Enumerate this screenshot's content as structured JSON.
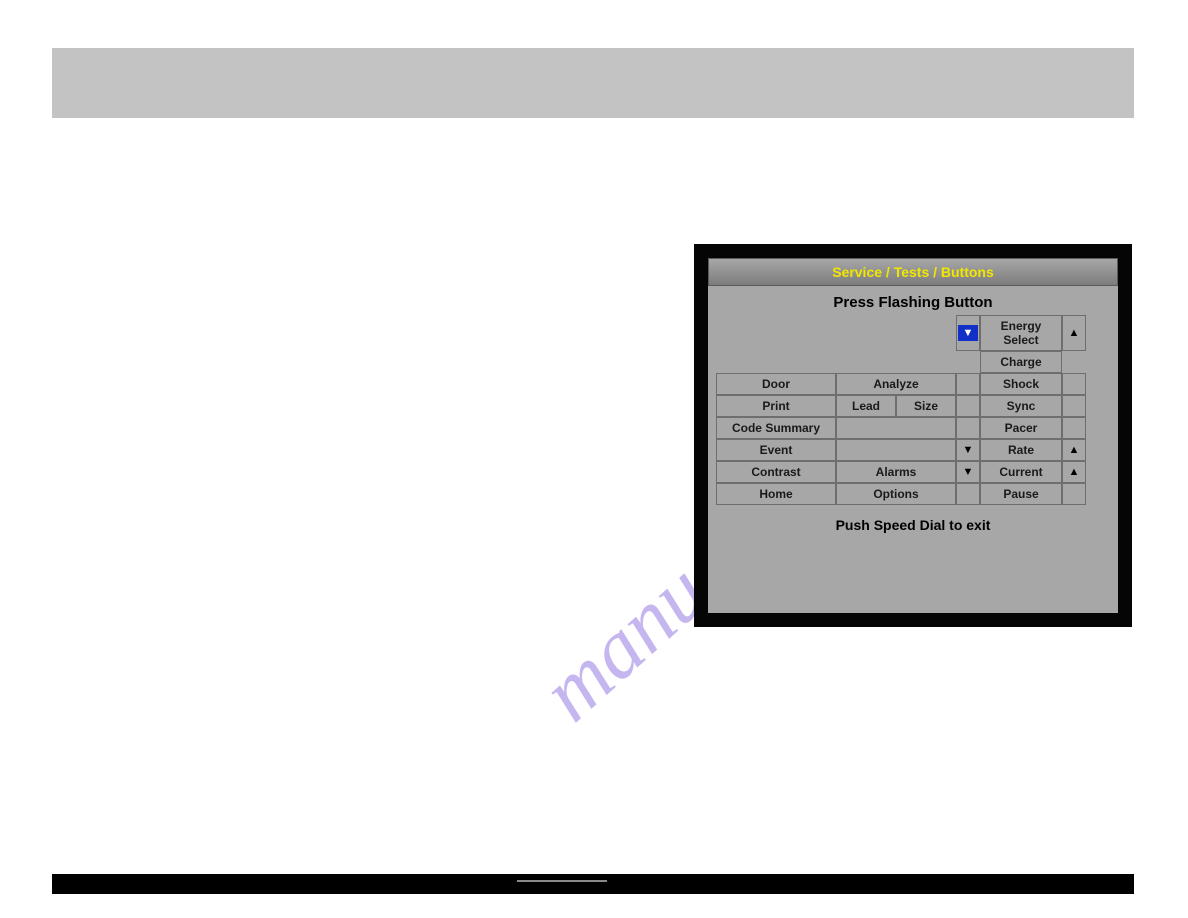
{
  "section_title": "",
  "screen": {
    "title": "Service / Tests / Buttons",
    "subtitle": "Press Flashing Button",
    "footer": "Push Speed Dial to exit",
    "row0": {
      "c4_down": "▼",
      "c5": "Energy Select",
      "c6_up": "▲"
    },
    "row1": {
      "c5": "Charge"
    },
    "row2": {
      "c1": "Door",
      "c23": "Analyze",
      "c5": "Shock"
    },
    "row3": {
      "c1": "Print",
      "c2": "Lead",
      "c3": "Size",
      "c5": "Sync"
    },
    "row4": {
      "c1": "Code Summary",
      "c5": "Pacer"
    },
    "row5": {
      "c1": "Event",
      "c4": "▼",
      "c5": "Rate",
      "c6": "▲"
    },
    "row6": {
      "c1": "Contrast",
      "c23": "Alarms",
      "c4": "▼",
      "c5": "Current",
      "c6": "▲"
    },
    "row7": {
      "c1": "Home",
      "c23": "Options",
      "c5": "Pause"
    }
  },
  "watermark": "manualshive.com"
}
